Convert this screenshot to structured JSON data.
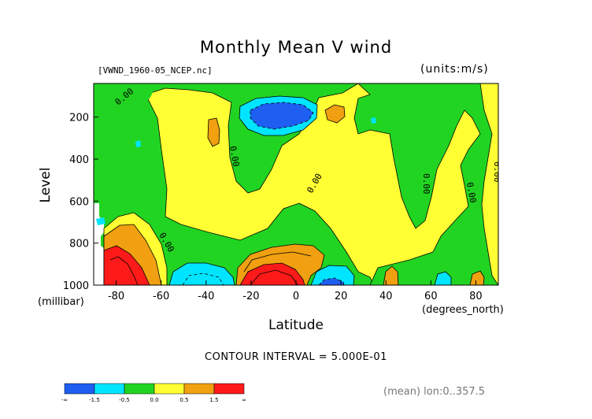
{
  "title": "Monthly Mean V wind",
  "file_label": "[VWND_1960-05_NCEP.nc]",
  "units_label": "(units:m/s)",
  "contour_interval": "CONTOUR INTERVAL = 5.000E-01",
  "mean_label": "(mean) lon:0..357.5",
  "chart_data": {
    "type": "heatmap",
    "subtype": "filled contour (latitude-pressure cross section)",
    "title": "Monthly Mean V wind",
    "xlabel": "Latitude",
    "x_unit": "(degrees_north)",
    "ylabel": "Level",
    "y_unit": "(millibar)",
    "xlim": [
      -90,
      90
    ],
    "ylim": [
      1000,
      40
    ],
    "y_inverted": true,
    "x_ticks": [
      -80,
      -60,
      -40,
      -20,
      0,
      20,
      40,
      60,
      80
    ],
    "y_ticks": [
      200,
      400,
      600,
      800,
      1000
    ],
    "contour_interval": 0.5,
    "zero_contour_label": "0.00",
    "colorbar": {
      "labels": [
        "-∞",
        "-1.5",
        "-0.5",
        "0.0",
        "0.5",
        "1.5",
        "∞"
      ],
      "colors": [
        "#1e5ef0",
        "#00e5ff",
        "#22d422",
        "#ffff33",
        "#f0a010",
        "#ff1a1a"
      ],
      "ranges": [
        [
          "-∞",
          "-1.5"
        ],
        [
          "-1.5",
          "-0.5"
        ],
        [
          "-0.5",
          "0.0"
        ],
        [
          "0.0",
          "0.5"
        ],
        [
          "0.5",
          "1.5"
        ],
        [
          "1.5",
          "∞"
        ]
      ]
    },
    "features": [
      {
        "name": "upper-tropospheric negative cell",
        "lat_range": [
          -22,
          2
        ],
        "level_range": [
          130,
          240
        ],
        "max_category": "< -1.5"
      },
      {
        "name": "low-level positive cell",
        "lat_range": [
          -28,
          0
        ],
        "level_range": [
          880,
          1000
        ],
        "max_category": "> 1.5"
      },
      {
        "name": "high-latitude southern low-level positive",
        "lat_range": [
          -88,
          -72
        ],
        "level_range": [
          870,
          1000
        ],
        "max_category": "> 1.5"
      },
      {
        "name": "low-level negative near -50",
        "lat_range": [
          -62,
          -32
        ],
        "level_range": [
          920,
          1000
        ],
        "max_category": "-1.5 to -0.5"
      },
      {
        "name": "low-level negative near 12",
        "lat_range": [
          7,
          25
        ],
        "level_range": [
          950,
          1000
        ],
        "max_category": "-1.5 to -0.5"
      },
      {
        "name": "upper positive near 17",
        "lat_range": [
          12,
          22
        ],
        "level_range": [
          110,
          200
        ],
        "max_category": "0.5 to 1.5"
      },
      {
        "name": "upper positive near -36",
        "lat_range": [
          -38,
          -33
        ],
        "level_range": [
          170,
          260
        ],
        "max_category": "0.5 to 1.5"
      }
    ]
  }
}
